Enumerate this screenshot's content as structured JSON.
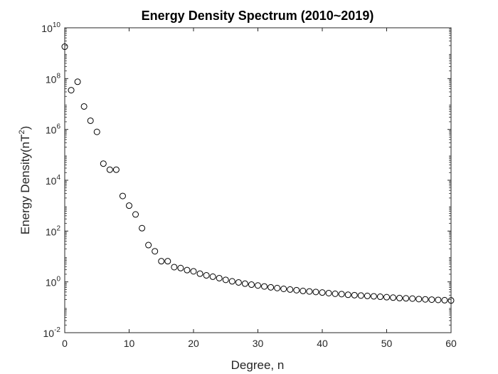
{
  "chart_data": {
    "type": "scatter",
    "title": "Energy Density Spectrum (2010~2019)",
    "xlabel": "Degree, n",
    "ylabel": "Energy Density(nT",
    "ylabel_sup": "2",
    "ylabel_close": ")",
    "xlim": [
      0,
      60
    ],
    "ylim": [
      0.01,
      10000000000
    ],
    "yscale": "log",
    "grid": false,
    "marker": "open-circle",
    "xticks": [
      "0",
      "10",
      "20",
      "30",
      "40",
      "50",
      "60"
    ],
    "yticks": [
      {
        "base": "10",
        "exp": "-2"
      },
      {
        "base": "10",
        "exp": "0"
      },
      {
        "base": "10",
        "exp": "2"
      },
      {
        "base": "10",
        "exp": "4"
      },
      {
        "base": "10",
        "exp": "6"
      },
      {
        "base": "10",
        "exp": "8"
      },
      {
        "base": "10",
        "exp": "10"
      }
    ],
    "x": [
      0,
      1,
      2,
      3,
      4,
      5,
      6,
      7,
      8,
      9,
      10,
      11,
      12,
      13,
      14,
      15,
      16,
      17,
      18,
      19,
      20,
      21,
      22,
      23,
      24,
      25,
      26,
      27,
      28,
      29,
      30,
      31,
      32,
      33,
      34,
      35,
      36,
      37,
      38,
      39,
      40,
      41,
      42,
      43,
      44,
      45,
      46,
      47,
      48,
      49,
      50,
      51,
      52,
      53,
      54,
      55,
      56,
      57,
      58,
      59,
      60
    ],
    "y": [
      1800000000.0,
      35000000.0,
      75000000.0,
      8000000.0,
      2200000.0,
      800000.0,
      45000.0,
      26000.0,
      26000.0,
      2400.0,
      1000.0,
      450.0,
      130.0,
      28,
      16,
      6.5,
      6.5,
      3.8,
      3.5,
      2.9,
      2.6,
      2.1,
      1.8,
      1.6,
      1.4,
      1.2,
      1.05,
      0.95,
      0.85,
      0.78,
      0.72,
      0.66,
      0.61,
      0.57,
      0.53,
      0.5,
      0.47,
      0.44,
      0.42,
      0.4,
      0.38,
      0.36,
      0.34,
      0.33,
      0.31,
      0.3,
      0.29,
      0.28,
      0.27,
      0.26,
      0.25,
      0.24,
      0.23,
      0.225,
      0.22,
      0.21,
      0.205,
      0.2,
      0.195,
      0.19,
      0.185
    ]
  }
}
